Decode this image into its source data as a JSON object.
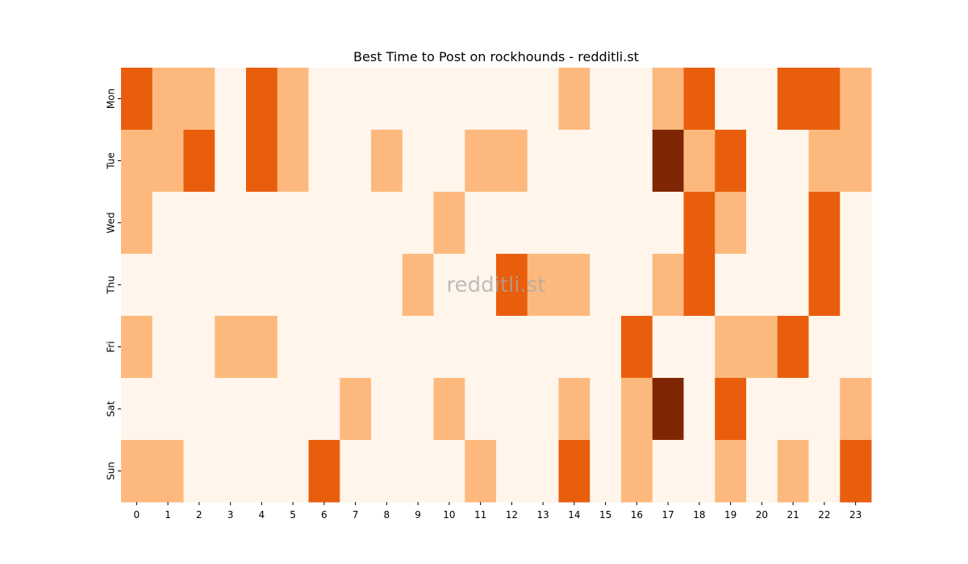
{
  "chart_data": {
    "type": "heatmap",
    "title": "Best Time to Post on rockhounds - redditli.st",
    "watermark": "redditli.st",
    "xlabel": "",
    "ylabel": "",
    "x": [
      "0",
      "1",
      "2",
      "3",
      "4",
      "5",
      "6",
      "7",
      "8",
      "9",
      "10",
      "11",
      "12",
      "13",
      "14",
      "15",
      "16",
      "17",
      "18",
      "19",
      "20",
      "21",
      "22",
      "23"
    ],
    "y": [
      "Mon",
      "Tue",
      "Wed",
      "Thu",
      "Fri",
      "Sat",
      "Sun"
    ],
    "values": [
      [
        2,
        1,
        1,
        0,
        2,
        1,
        0,
        0,
        0,
        0,
        0,
        0,
        0,
        0,
        1,
        0,
        0,
        1,
        2,
        0,
        0,
        2,
        2,
        1
      ],
      [
        1,
        1,
        2,
        0,
        2,
        1,
        0,
        0,
        1,
        0,
        0,
        1,
        1,
        0,
        0,
        0,
        0,
        3,
        1,
        2,
        0,
        0,
        1,
        1
      ],
      [
        1,
        0,
        0,
        0,
        0,
        0,
        0,
        0,
        0,
        0,
        1,
        0,
        0,
        0,
        0,
        0,
        0,
        0,
        2,
        1,
        0,
        0,
        2,
        0
      ],
      [
        0,
        0,
        0,
        0,
        0,
        0,
        0,
        0,
        0,
        1,
        0,
        0,
        2,
        1,
        1,
        0,
        0,
        1,
        2,
        0,
        0,
        0,
        2,
        0
      ],
      [
        1,
        0,
        0,
        1,
        1,
        0,
        0,
        0,
        0,
        0,
        0,
        0,
        0,
        0,
        0,
        0,
        2,
        0,
        0,
        1,
        1,
        2,
        0,
        0
      ],
      [
        0,
        0,
        0,
        0,
        0,
        0,
        0,
        1,
        0,
        0,
        1,
        0,
        0,
        0,
        1,
        0,
        1,
        3,
        0,
        2,
        0,
        0,
        0,
        1
      ],
      [
        1,
        1,
        0,
        0,
        0,
        0,
        2,
        0,
        0,
        0,
        0,
        1,
        0,
        0,
        2,
        0,
        1,
        0,
        0,
        1,
        0,
        1,
        0,
        2
      ]
    ],
    "vmin": 0,
    "vmax": 3,
    "colormap": [
      "#fff5eb",
      "#fdb97d",
      "#e95e0d",
      "#7f2704"
    ],
    "legend": "none",
    "grid": false
  }
}
